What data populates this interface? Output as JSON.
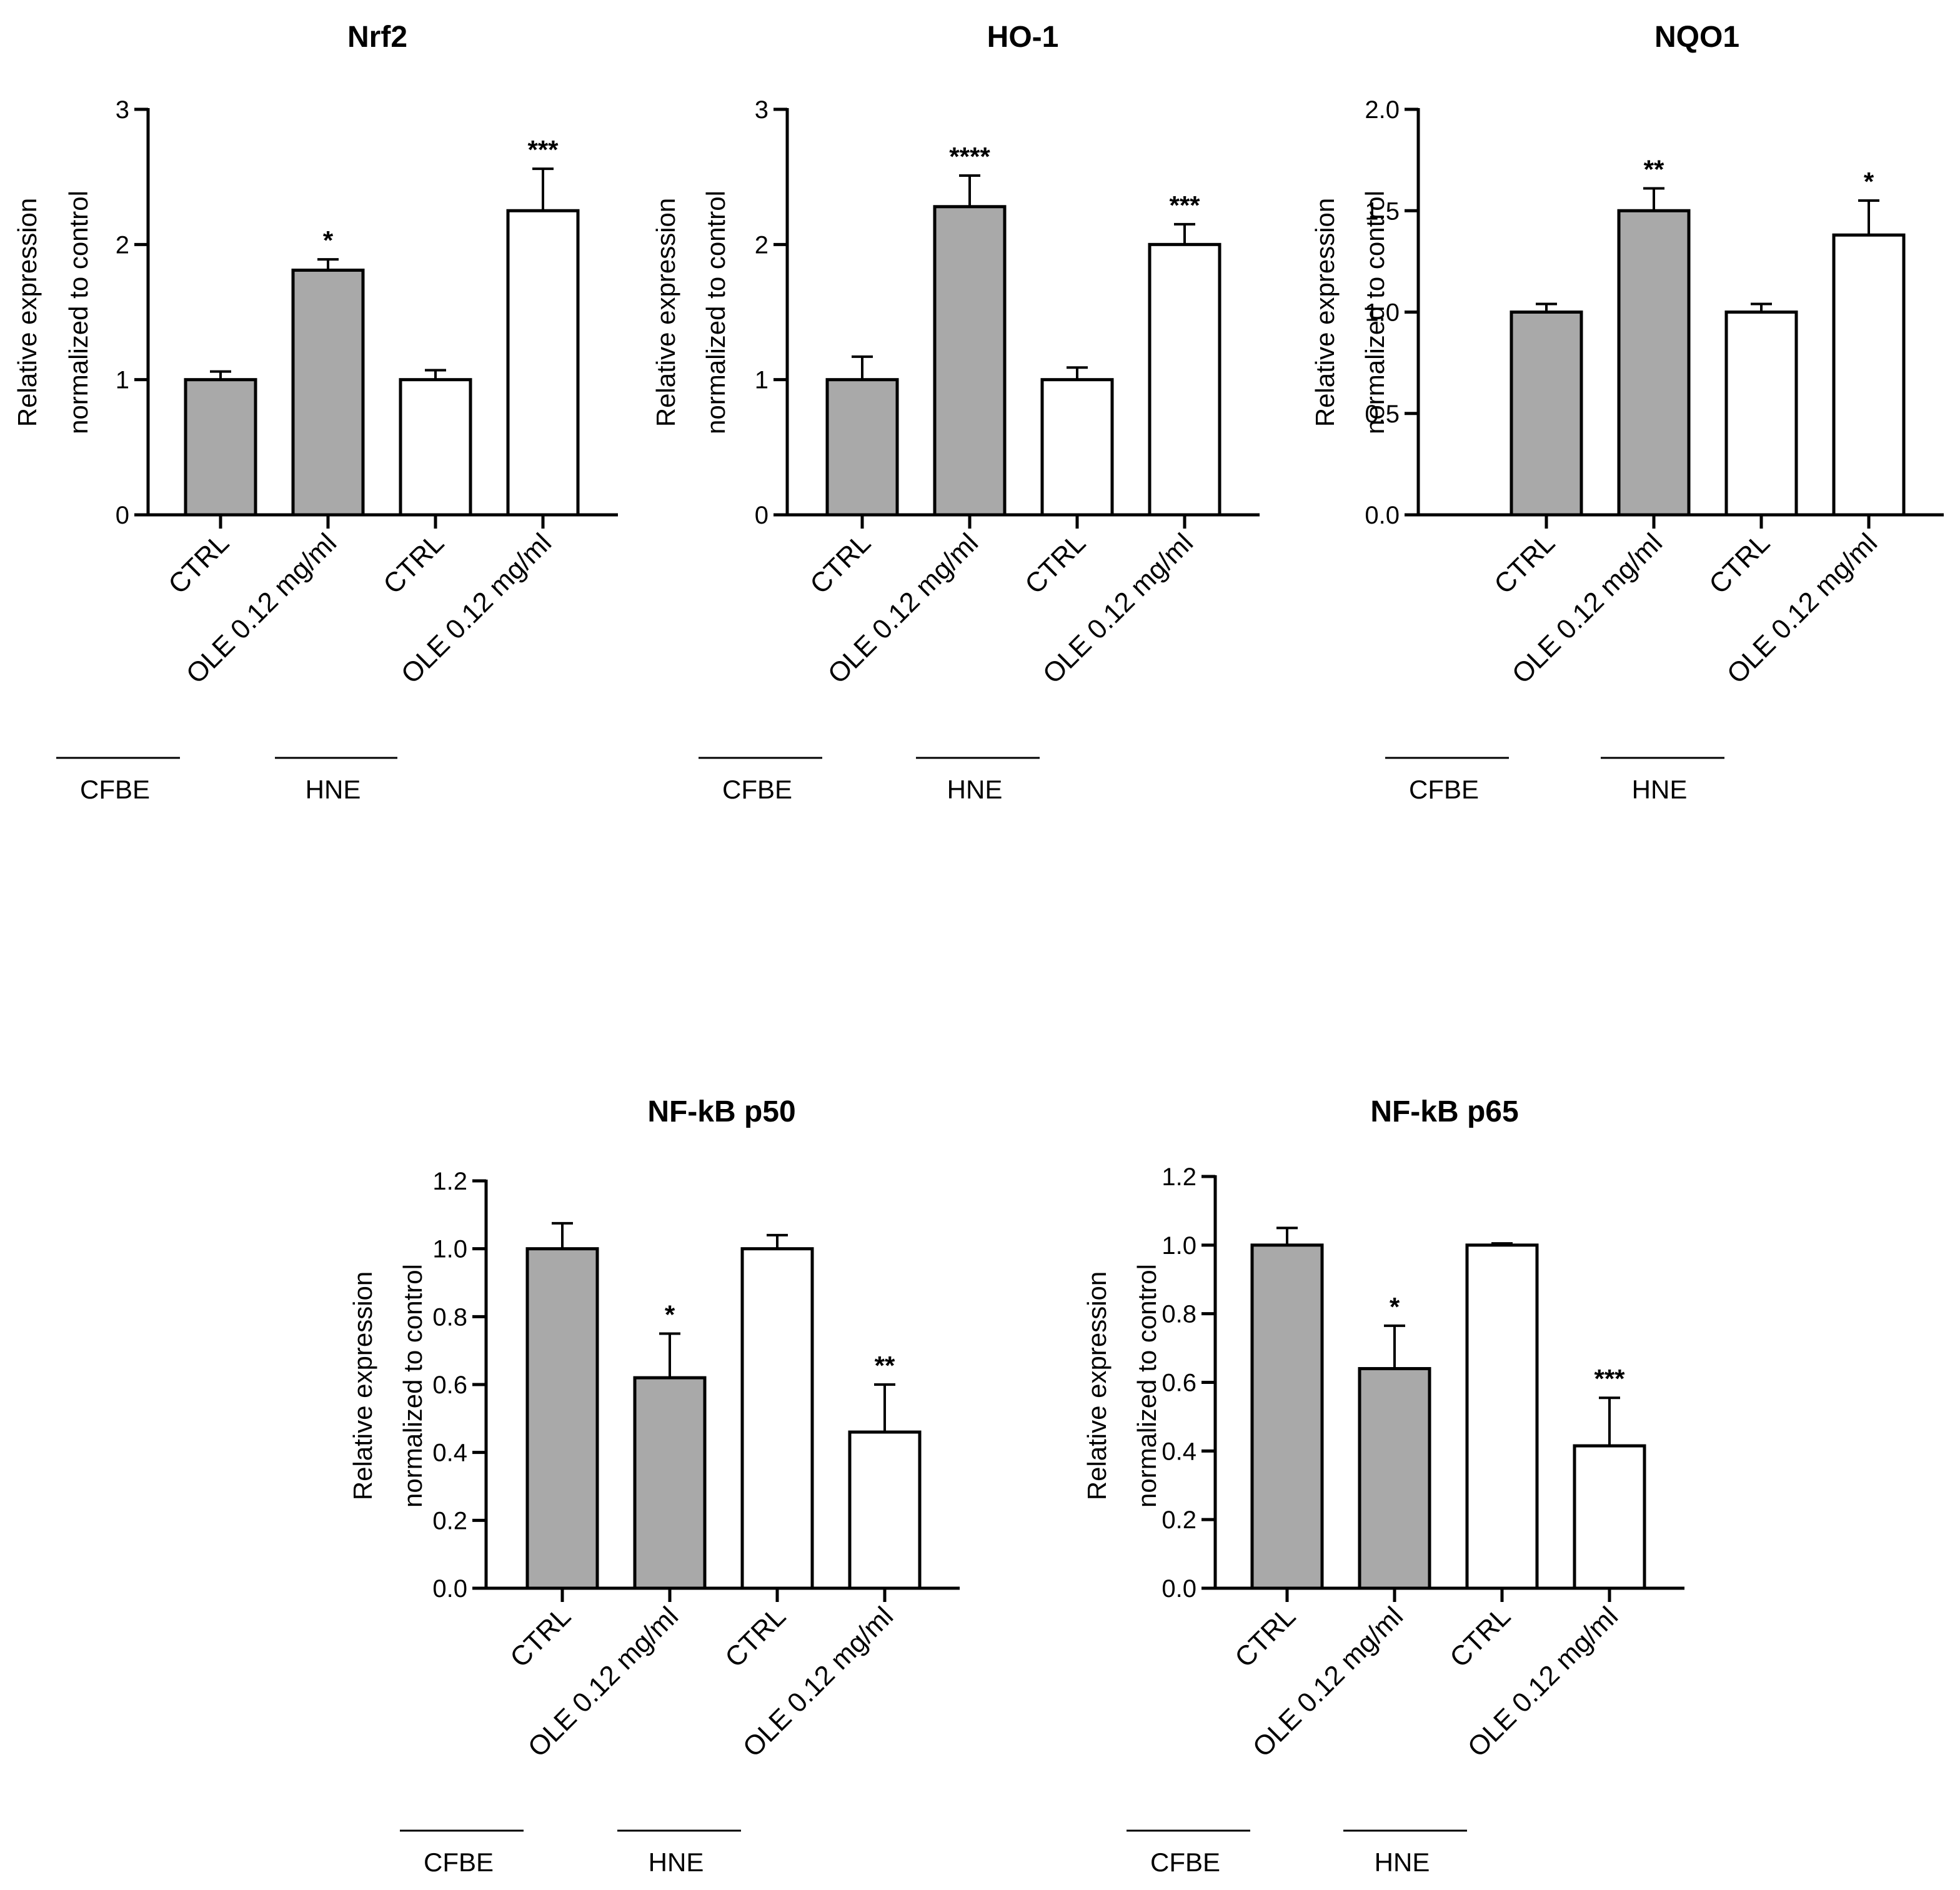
{
  "figure": {
    "group_labels": [
      "CFBE",
      "HNE"
    ],
    "colors": {
      "cfbe_bar": "#a9a9a9",
      "hne_bar": "#ffffff",
      "stroke": "#000000"
    }
  },
  "chart_data": [
    {
      "type": "bar",
      "title": "Nrf2",
      "ylabel": "Relative expression normalized to control",
      "ylabel_lines": [
        "Relative expression",
        "normalized to control"
      ],
      "categories": [
        "CTRL",
        "OLE 0.12 mg/ml",
        "CTRL",
        "OLE 0.12 mg/ml"
      ],
      "groups": [
        "CFBE",
        "CFBE",
        "HNE",
        "HNE"
      ],
      "values": [
        1.0,
        1.81,
        1.0,
        2.25
      ],
      "errors": [
        0.06,
        0.08,
        0.07,
        0.31
      ],
      "significance": [
        "",
        "*",
        "",
        "***"
      ],
      "ylim": [
        0,
        3
      ],
      "yticks": [
        0,
        1,
        2,
        3
      ],
      "ytick_labels": [
        "0",
        "1",
        "2",
        "3"
      ]
    },
    {
      "type": "bar",
      "title": "HO-1",
      "ylabel": "Relative expression normalized to control",
      "ylabel_lines": [
        "Relative expression",
        "normalized to control"
      ],
      "categories": [
        "CTRL",
        "OLE 0.12 mg/ml",
        "CTRL",
        "OLE 0.12 mg/ml"
      ],
      "groups": [
        "CFBE",
        "CFBE",
        "HNE",
        "HNE"
      ],
      "values": [
        1.0,
        2.28,
        1.0,
        2.0
      ],
      "errors": [
        0.17,
        0.23,
        0.09,
        0.15
      ],
      "significance": [
        "",
        "****",
        "",
        "***"
      ],
      "ylim": [
        0,
        3
      ],
      "yticks": [
        0,
        1,
        2,
        3
      ],
      "ytick_labels": [
        "0",
        "1",
        "2",
        "3"
      ]
    },
    {
      "type": "bar",
      "title": "NQO1",
      "ylabel": "Relative expression normalized to control",
      "ylabel_lines": [
        "Relative expression",
        "normalized to control"
      ],
      "categories": [
        "CTRL",
        "OLE 0.12 mg/ml",
        "CTRL",
        "OLE 0.12 mg/ml"
      ],
      "groups": [
        "CFBE",
        "CFBE",
        "HNE",
        "HNE"
      ],
      "values": [
        1.0,
        1.5,
        1.0,
        1.38
      ],
      "errors": [
        0.04,
        0.11,
        0.04,
        0.17
      ],
      "significance": [
        "",
        "**",
        "",
        "*"
      ],
      "ylim": [
        0,
        2
      ],
      "yticks": [
        0,
        0.5,
        1,
        1.5,
        2
      ],
      "ytick_labels": [
        "0.0",
        "0.5",
        "1.0",
        "1.5",
        "2.0"
      ]
    },
    {
      "type": "bar",
      "title": "NF-kB p50",
      "ylabel": "Relative expression normalized to control",
      "ylabel_lines": [
        "Relative expression",
        "normalized to control"
      ],
      "categories": [
        "CTRL",
        "OLE 0.12 mg/ml",
        "CTRL",
        "OLE 0.12 mg/ml"
      ],
      "groups": [
        "CFBE",
        "CFBE",
        "HNE",
        "HNE"
      ],
      "values": [
        1.0,
        0.62,
        1.0,
        0.46
      ],
      "errors": [
        0.075,
        0.13,
        0.04,
        0.14
      ],
      "significance": [
        "",
        "*",
        "",
        "**"
      ],
      "ylim": [
        0,
        1.2
      ],
      "yticks": [
        0,
        0.2,
        0.4,
        0.6,
        0.8,
        1.0,
        1.2
      ],
      "ytick_labels": [
        "0.0",
        "0.2",
        "0.4",
        "0.6",
        "0.8",
        "1.0",
        "1.2"
      ]
    },
    {
      "type": "bar",
      "title": "NF-kB p65",
      "ylabel": "Relative expression normalized to control",
      "ylabel_lines": [
        "Relative expression",
        "normalized to control"
      ],
      "categories": [
        "CTRL",
        "OLE 0.12 mg/ml",
        "CTRL",
        "OLE 0.12 mg/ml"
      ],
      "groups": [
        "CFBE",
        "CFBE",
        "HNE",
        "HNE"
      ],
      "values": [
        1.0,
        0.64,
        1.0,
        0.415
      ],
      "errors": [
        0.05,
        0.125,
        0.005,
        0.14
      ],
      "significance": [
        "",
        "*",
        "",
        "***"
      ],
      "ylim": [
        0,
        1.2
      ],
      "yticks": [
        0,
        0.2,
        0.4,
        0.6,
        0.8,
        1.0,
        1.2
      ],
      "ytick_labels": [
        "0.0",
        "0.2",
        "0.4",
        "0.6",
        "0.8",
        "1.0",
        "1.2"
      ]
    }
  ]
}
